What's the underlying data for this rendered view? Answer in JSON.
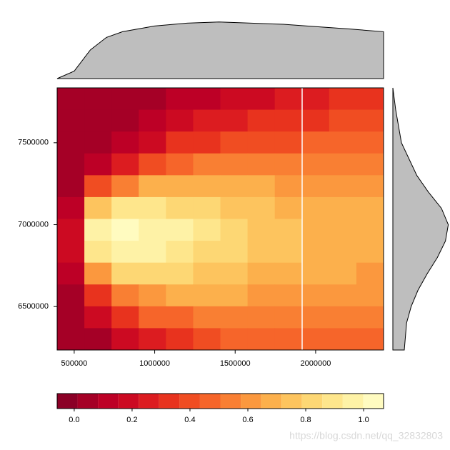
{
  "chart_data": {
    "type": "heatmap",
    "x": [
      478500,
      647500,
      816500,
      985500,
      1154500,
      1323500,
      1492500,
      1661500,
      1830500,
      1999500,
      2168500,
      2337500
    ],
    "y": [
      7768333,
      7635000,
      7501667,
      7368333,
      7235000,
      7101667,
      6968333,
      6835000,
      6701667,
      6568333,
      6435000,
      6301667
    ],
    "z": [
      [
        0.03,
        0.03,
        0.04,
        0.07,
        0.11,
        0.15,
        0.19,
        0.22,
        0.25,
        0.28,
        0.3,
        0.31
      ],
      [
        0.03,
        0.03,
        0.06,
        0.12,
        0.17,
        0.23,
        0.27,
        0.3,
        0.33,
        0.36,
        0.38,
        0.39
      ],
      [
        0.03,
        0.05,
        0.13,
        0.22,
        0.3,
        0.35,
        0.39,
        0.41,
        0.43,
        0.45,
        0.46,
        0.47
      ],
      [
        0.05,
        0.14,
        0.29,
        0.41,
        0.47,
        0.51,
        0.53,
        0.53,
        0.54,
        0.54,
        0.54,
        0.54
      ],
      [
        0.08,
        0.37,
        0.56,
        0.66,
        0.68,
        0.67,
        0.66,
        0.65,
        0.64,
        0.63,
        0.62,
        0.61
      ],
      [
        0.14,
        0.74,
        0.87,
        0.89,
        0.85,
        0.81,
        0.78,
        0.73,
        0.71,
        0.69,
        0.67,
        0.66
      ],
      [
        0.18,
        0.97,
        1.0,
        0.99,
        0.93,
        0.87,
        0.82,
        0.77,
        0.74,
        0.71,
        0.69,
        0.67
      ],
      [
        0.17,
        0.89,
        0.98,
        0.96,
        0.91,
        0.85,
        0.8,
        0.75,
        0.73,
        0.7,
        0.68,
        0.66
      ],
      [
        0.12,
        0.63,
        0.79,
        0.83,
        0.81,
        0.77,
        0.75,
        0.71,
        0.7,
        0.68,
        0.66,
        0.64
      ],
      [
        0.08,
        0.35,
        0.54,
        0.64,
        0.66,
        0.66,
        0.66,
        0.64,
        0.64,
        0.63,
        0.62,
        0.61
      ],
      [
        0.05,
        0.16,
        0.32,
        0.45,
        0.5,
        0.53,
        0.55,
        0.55,
        0.56,
        0.56,
        0.56,
        0.56
      ],
      [
        0.03,
        0.07,
        0.18,
        0.29,
        0.36,
        0.41,
        0.45,
        0.46,
        0.48,
        0.49,
        0.5,
        0.5
      ]
    ],
    "xlim": [
      394000,
      2422000
    ],
    "ylim": [
      6235000,
      7835000
    ],
    "xticks": [
      500000,
      1000000,
      1500000,
      2000000
    ],
    "yticks": [
      6500000,
      7000000,
      7500000
    ],
    "vline": 1916000,
    "colorbar": {
      "breaks": [
        -0.059,
        0.0115,
        0.082,
        0.1525,
        0.223,
        0.2935,
        0.364,
        0.4345,
        0.505,
        0.5755,
        0.646,
        0.7165,
        0.787,
        0.8575,
        0.928,
        0.9985,
        1.069
      ],
      "colors": [
        "#8b0026",
        "#a50026",
        "#bd0026",
        "#cc0a22",
        "#dc1c20",
        "#e8331e",
        "#f04d22",
        "#f6652a",
        "#f97f33",
        "#fb983e",
        "#fcb04c",
        "#fdc45e",
        "#fdd774",
        "#fee68c",
        "#fef2a6",
        "#fffbc0"
      ],
      "ticks": [
        {
          "value": 0,
          "label": "0.0"
        },
        0.2,
        0.4,
        0.6,
        0.8,
        {
          "value": 1,
          "label": "1.0"
        }
      ]
    },
    "marginal_x": {
      "x": [
        394000,
        500000,
        600000,
        700000,
        800000,
        1000000,
        1200000,
        1400000,
        1600000,
        1800000,
        2000000,
        2200000,
        2422000
      ],
      "values": [
        0,
        0.13,
        0.5,
        0.72,
        0.82,
        0.92,
        0.97,
        0.99,
        0.97,
        0.95,
        0.91,
        0.87,
        0.82
      ]
    },
    "marginal_y": {
      "y": [
        7835000,
        7700000,
        7500000,
        7300000,
        7200000,
        7100000,
        7000000,
        6900000,
        6800000,
        6700000,
        6600000,
        6500000,
        6400000,
        6235000
      ],
      "values": [
        0,
        0.05,
        0.15,
        0.42,
        0.62,
        0.85,
        0.97,
        0.92,
        0.78,
        0.6,
        0.44,
        0.32,
        0.24,
        0.2
      ]
    },
    "marginal_color": "#bebebe",
    "watermark": "https://blog.csdn.net/qq_32832803"
  }
}
